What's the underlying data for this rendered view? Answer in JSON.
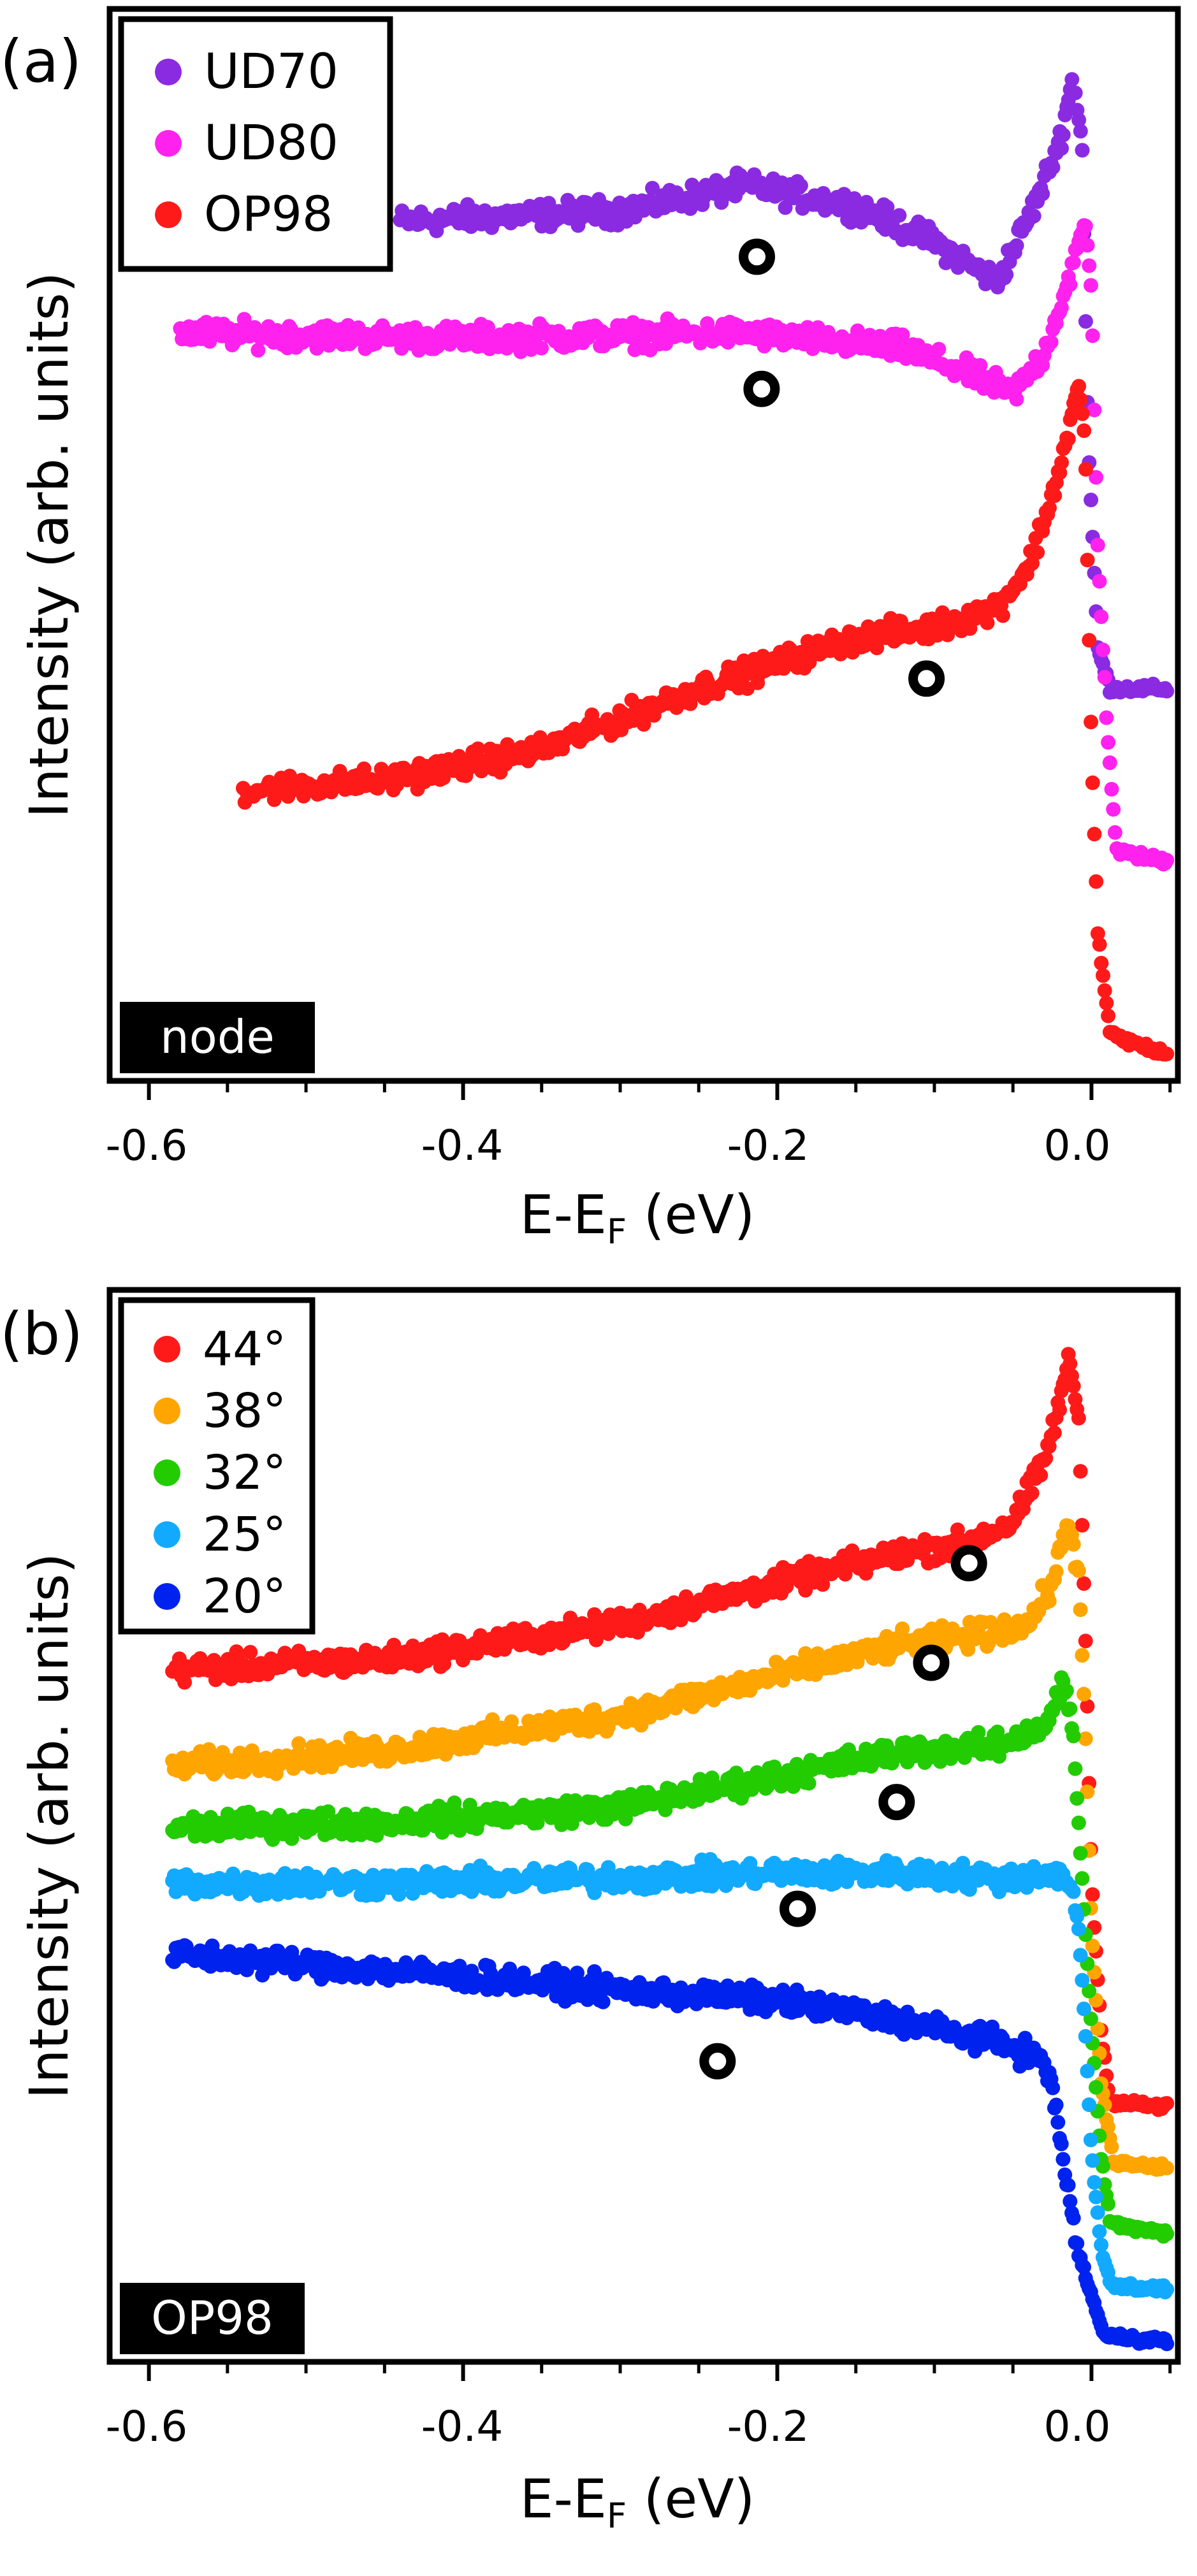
{
  "figure": {
    "panel_a_label": "(a)",
    "panel_b_label": "(b)"
  },
  "chart_data": [
    {
      "type": "scatter",
      "panel": "(a)",
      "title": "",
      "xlabel": "E-E",
      "xlabel_subscript": "F",
      "xlabel_unit": " (eV)",
      "ylabel": "Intensity (arb. units)",
      "xlim": [
        -0.625,
        0.055
      ],
      "ylim": [
        0,
        1.0
      ],
      "xticks": [
        -0.6,
        -0.4,
        -0.2,
        0.0
      ],
      "xtick_labels": [
        "-0.6",
        "-0.4",
        "-0.2",
        "0.0"
      ],
      "annotation": "node",
      "legend_position": "top-left",
      "series": [
        {
          "name": "UD70",
          "color": "#8a2be2",
          "range": [
            -0.44,
            0.048
          ],
          "points": [
            [
              -0.44,
              0.82
            ],
            [
              -0.3,
              0.83
            ],
            [
              -0.22,
              0.855
            ],
            [
              -0.15,
              0.835
            ],
            [
              -0.1,
              0.8
            ],
            [
              -0.06,
              0.76
            ],
            [
              -0.035,
              0.84
            ],
            [
              -0.02,
              0.9
            ],
            [
              -0.012,
              0.96
            ],
            [
              -0.006,
              0.9
            ],
            [
              -0.002,
              0.6
            ],
            [
              0.004,
              0.4
            ],
            [
              0.012,
              0.36
            ],
            [
              0.048,
              0.36
            ]
          ],
          "peak_marker": -0.213,
          "peak_marker_y": 0.785
        },
        {
          "name": "UD80",
          "color": "#ff22ee",
          "range": [
            -0.58,
            0.048
          ],
          "points": [
            [
              -0.58,
              0.71
            ],
            [
              -0.4,
              0.705
            ],
            [
              -0.22,
              0.71
            ],
            [
              -0.12,
              0.695
            ],
            [
              -0.07,
              0.665
            ],
            [
              -0.05,
              0.65
            ],
            [
              -0.03,
              0.69
            ],
            [
              -0.015,
              0.76
            ],
            [
              -0.004,
              0.82
            ],
            [
              0.0,
              0.75
            ],
            [
              0.004,
              0.5
            ],
            [
              0.01,
              0.32
            ],
            [
              0.016,
              0.2
            ],
            [
              0.048,
              0.19
            ]
          ],
          "peak_marker": -0.21,
          "peak_marker_y": 0.655
        },
        {
          "name": "OP98",
          "color": "#ff1a1a",
          "range": [
            -0.54,
            0.048
          ],
          "points": [
            [
              -0.54,
              0.26
            ],
            [
              -0.45,
              0.27
            ],
            [
              -0.35,
              0.3
            ],
            [
              -0.25,
              0.36
            ],
            [
              -0.15,
              0.41
            ],
            [
              -0.1,
              0.42
            ],
            [
              -0.06,
              0.44
            ],
            [
              -0.04,
              0.48
            ],
            [
              -0.025,
              0.55
            ],
            [
              -0.015,
              0.61
            ],
            [
              -0.008,
              0.66
            ],
            [
              -0.004,
              0.6
            ],
            [
              -0.002,
              0.45
            ],
            [
              0.0,
              0.3
            ],
            [
              0.004,
              0.12
            ],
            [
              0.012,
              0.02
            ],
            [
              0.048,
              0.0
            ]
          ],
          "peak_marker": -0.105,
          "peak_marker_y": 0.37
        }
      ]
    },
    {
      "type": "scatter",
      "panel": "(b)",
      "title": "",
      "xlabel": "E-E",
      "xlabel_subscript": "F",
      "xlabel_unit": " (eV)",
      "ylabel": "Intensity (arb. units)",
      "xlim": [
        -0.625,
        0.055
      ],
      "ylim": [
        0,
        1.0
      ],
      "xticks": [
        -0.6,
        -0.4,
        -0.2,
        0.0
      ],
      "xtick_labels": [
        "-0.6",
        "-0.4",
        "-0.2",
        "0.0"
      ],
      "annotation": "OP98",
      "legend_position": "top-left",
      "series": [
        {
          "name": "44°",
          "color": "#ff1a1a",
          "range": [
            -0.585,
            0.048
          ],
          "points": [
            [
              -0.585,
              0.655
            ],
            [
              -0.45,
              0.665
            ],
            [
              -0.3,
              0.7
            ],
            [
              -0.2,
              0.74
            ],
            [
              -0.12,
              0.77
            ],
            [
              -0.08,
              0.78
            ],
            [
              -0.05,
              0.8
            ],
            [
              -0.03,
              0.86
            ],
            [
              -0.02,
              0.92
            ],
            [
              -0.014,
              0.96
            ],
            [
              -0.008,
              0.9
            ],
            [
              -0.004,
              0.7
            ],
            [
              0.0,
              0.45
            ],
            [
              0.006,
              0.3
            ],
            [
              0.012,
              0.23
            ],
            [
              0.048,
              0.225
            ]
          ],
          "peak_marker": -0.078,
          "peak_marker_y": 0.76
        },
        {
          "name": "38°",
          "color": "#ffa500",
          "range": [
            -0.585,
            0.048
          ],
          "points": [
            [
              -0.585,
              0.56
            ],
            [
              -0.45,
              0.575
            ],
            [
              -0.3,
              0.61
            ],
            [
              -0.2,
              0.65
            ],
            [
              -0.12,
              0.68
            ],
            [
              -0.07,
              0.69
            ],
            [
              -0.04,
              0.7
            ],
            [
              -0.025,
              0.74
            ],
            [
              -0.015,
              0.8
            ],
            [
              -0.008,
              0.75
            ],
            [
              -0.004,
              0.6
            ],
            [
              0.0,
              0.4
            ],
            [
              0.006,
              0.25
            ],
            [
              0.014,
              0.17
            ],
            [
              0.048,
              0.165
            ]
          ],
          "peak_marker": -0.102,
          "peak_marker_y": 0.662
        },
        {
          "name": "32°",
          "color": "#22cc00",
          "range": [
            -0.585,
            0.048
          ],
          "points": [
            [
              -0.585,
              0.5
            ],
            [
              -0.45,
              0.505
            ],
            [
              -0.3,
              0.52
            ],
            [
              -0.2,
              0.55
            ],
            [
              -0.12,
              0.575
            ],
            [
              -0.06,
              0.58
            ],
            [
              -0.03,
              0.6
            ],
            [
              -0.018,
              0.64
            ],
            [
              -0.012,
              0.6
            ],
            [
              -0.006,
              0.45
            ],
            [
              0.0,
              0.3
            ],
            [
              0.006,
              0.18
            ],
            [
              0.012,
              0.11
            ],
            [
              0.048,
              0.1
            ]
          ],
          "peak_marker": -0.124,
          "peak_marker_y": 0.525
        },
        {
          "name": "25°",
          "color": "#11aaff",
          "range": [
            -0.585,
            0.048
          ],
          "points": [
            [
              -0.585,
              0.445
            ],
            [
              -0.45,
              0.445
            ],
            [
              -0.3,
              0.45
            ],
            [
              -0.2,
              0.455
            ],
            [
              -0.12,
              0.455
            ],
            [
              -0.06,
              0.45
            ],
            [
              -0.03,
              0.455
            ],
            [
              -0.014,
              0.45
            ],
            [
              -0.008,
              0.4
            ],
            [
              -0.004,
              0.3
            ],
            [
              0.0,
              0.18
            ],
            [
              0.006,
              0.09
            ],
            [
              0.012,
              0.05
            ],
            [
              0.048,
              0.045
            ]
          ],
          "peak_marker": -0.187,
          "peak_marker_y": 0.42
        },
        {
          "name": "20°",
          "color": "#0022ee",
          "range": [
            -0.585,
            0.048
          ],
          "points": [
            [
              -0.585,
              0.375
            ],
            [
              -0.45,
              0.36
            ],
            [
              -0.3,
              0.34
            ],
            [
              -0.2,
              0.33
            ],
            [
              -0.12,
              0.31
            ],
            [
              -0.08,
              0.295
            ],
            [
              -0.05,
              0.285
            ],
            [
              -0.03,
              0.27
            ],
            [
              -0.022,
              0.22
            ],
            [
              -0.015,
              0.14
            ],
            [
              -0.008,
              0.08
            ],
            [
              0.0,
              0.04
            ],
            [
              0.008,
              0.0
            ],
            [
              0.048,
              -0.005
            ]
          ],
          "peak_marker": -0.238,
          "peak_marker_y": 0.27
        }
      ]
    }
  ]
}
